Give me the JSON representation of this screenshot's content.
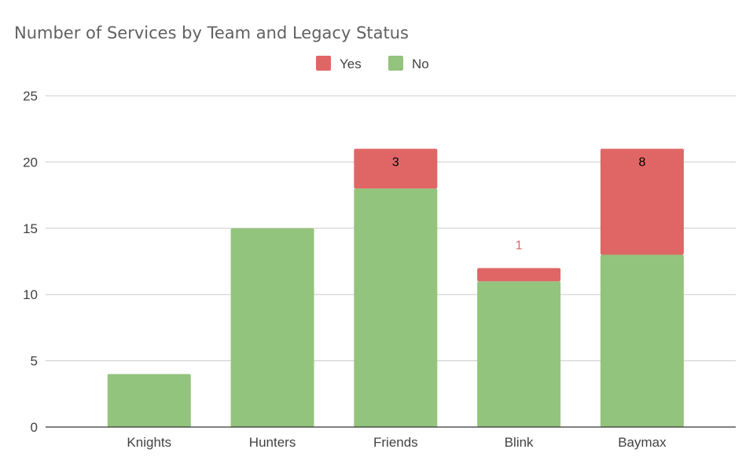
{
  "chart_data": {
    "type": "bar",
    "stacked": true,
    "title": "Number of Services by Team and Legacy Status",
    "xlabel": "",
    "ylabel": "",
    "categories": [
      "Knights",
      "Hunters",
      "Friends",
      "Blink",
      "Baymax"
    ],
    "series": [
      {
        "name": "No",
        "color": "#93c47d",
        "values": [
          4,
          15,
          18,
          11,
          13
        ]
      },
      {
        "name": "Yes",
        "color": "#e06666",
        "values": [
          0,
          0,
          3,
          1,
          8
        ]
      }
    ],
    "data_labels": [
      {
        "category": "Friends",
        "series": "Yes",
        "text": "3",
        "color": "#000000"
      },
      {
        "category": "Blink",
        "series": "Yes",
        "text": "1",
        "color": "#e06666"
      },
      {
        "category": "Baymax",
        "series": "Yes",
        "text": "8",
        "color": "#000000"
      }
    ],
    "legend": {
      "position": "top",
      "order": [
        "Yes",
        "No"
      ]
    },
    "ylim": [
      0,
      25
    ],
    "yticks": [
      0,
      5,
      10,
      15,
      20,
      25
    ],
    "grid": true,
    "gridline_color": "#cccccc",
    "axis_color": "#333333"
  }
}
